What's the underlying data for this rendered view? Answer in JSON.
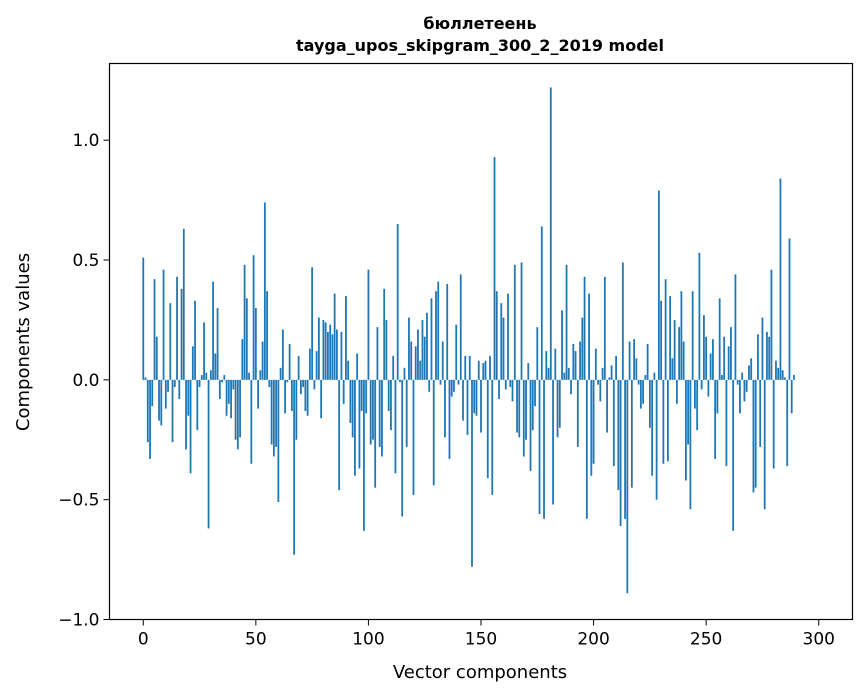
{
  "chart_data": {
    "type": "bar",
    "title_line1": "бюллетеень",
    "title_line2": "tayga_upos_skipgram_300_2_2019 model",
    "xlabel": "Vector components",
    "ylabel": "Components values",
    "xlim": [
      -15,
      315
    ],
    "ylim": [
      -1.0,
      1.32
    ],
    "xticks": [
      0,
      50,
      100,
      150,
      200,
      250,
      300
    ],
    "xtick_labels": [
      "0",
      "50",
      "100",
      "150",
      "200",
      "250",
      "300"
    ],
    "yticks": [
      -1.0,
      -0.5,
      0.0,
      0.5,
      1.0
    ],
    "ytick_labels": [
      "−1.0",
      "−0.5",
      "0.0",
      "0.5",
      "1.0"
    ],
    "grid": false,
    "color": "#1f77b4",
    "values": [
      0.51,
      0.01,
      -0.26,
      -0.33,
      -0.11,
      0.42,
      0.18,
      -0.17,
      -0.19,
      0.46,
      -0.12,
      -0.05,
      0.32,
      -0.26,
      -0.03,
      0.43,
      -0.08,
      0.38,
      0.63,
      -0.29,
      -0.15,
      -0.39,
      0.14,
      0.33,
      -0.21,
      -0.03,
      0.02,
      0.24,
      0.03,
      -0.62,
      0.04,
      0.41,
      0.11,
      0.3,
      -0.08,
      -0.01,
      0.02,
      -0.15,
      -0.1,
      -0.16,
      -0.04,
      -0.25,
      -0.29,
      -0.24,
      0.17,
      0.48,
      0.34,
      0.03,
      -0.35,
      0.52,
      0.3,
      -0.12,
      0.04,
      0.16,
      0.74,
      0.37,
      -0.03,
      -0.27,
      -0.32,
      -0.28,
      -0.51,
      0.05,
      0.21,
      -0.14,
      -0.01,
      0.15,
      -0.13,
      -0.73,
      -0.25,
      0.1,
      -0.06,
      -0.03,
      -0.13,
      -0.15,
      0.13,
      0.47,
      -0.04,
      0.12,
      0.26,
      -0.16,
      0.25,
      0.24,
      0.2,
      0.23,
      0.19,
      0.36,
      0.21,
      -0.46,
      0.2,
      -0.1,
      0.35,
      0.08,
      -0.18,
      -0.24,
      -0.4,
      0.11,
      -0.37,
      -0.13,
      -0.63,
      -0.14,
      0.46,
      -0.27,
      -0.25,
      -0.45,
      0.22,
      -0.28,
      -0.32,
      0.38,
      0.25,
      -0.13,
      -0.21,
      0.1,
      -0.39,
      0.65,
      -0.01,
      -0.57,
      0.05,
      -0.28,
      0.26,
      0.16,
      -0.48,
      0.14,
      0.21,
      0.08,
      0.25,
      0.18,
      0.28,
      -0.05,
      0.34,
      -0.44,
      0.37,
      0.41,
      -0.02,
      0.16,
      -0.24,
      0.4,
      -0.33,
      -0.07,
      -0.05,
      0.23,
      -0.02,
      0.44,
      -0.17,
      0.1,
      -0.23,
      0.1,
      -0.78,
      -0.14,
      -0.15,
      0.08,
      -0.22,
      0.07,
      0.08,
      -0.41,
      0.1,
      -0.48,
      0.93,
      0.37,
      -0.08,
      0.32,
      0.26,
      -0.04,
      0.36,
      -0.03,
      -0.09,
      0.48,
      -0.22,
      -0.24,
      0.49,
      -0.32,
      -0.25,
      0.07,
      -0.38,
      -0.21,
      -0.11,
      0.22,
      -0.56,
      0.64,
      -0.58,
      0.12,
      0.05,
      1.22,
      -0.52,
      0.13,
      -0.24,
      -0.2,
      0.29,
      0.03,
      0.48,
      0.05,
      -0.06,
      0.15,
      0.12,
      -0.28,
      0.16,
      0.26,
      0.43,
      -0.58,
      0.36,
      -0.4,
      -0.35,
      0.13,
      -0.02,
      -0.09,
      0.05,
      0.43,
      -0.22,
      0.01,
      0.06,
      -0.36,
      0.1,
      -0.46,
      -0.61,
      0.49,
      -0.58,
      -0.89,
      0.16,
      -0.45,
      0.17,
      0.09,
      -0.02,
      -0.12,
      -0.1,
      0.02,
      0.15,
      -0.2,
      -0.4,
      0.03,
      -0.5,
      0.79,
      0.33,
      -0.35,
      0.42,
      -0.34,
      0.35,
      0.09,
      0.25,
      -0.1,
      0.22,
      0.37,
      0.16,
      -0.42,
      -0.27,
      -0.54,
      0.37,
      -0.12,
      -0.21,
      0.53,
      -0.04,
      0.27,
      0.18,
      -0.07,
      0.11,
      0.17,
      -0.33,
      -0.14,
      0.34,
      0.02,
      0.18,
      -0.36,
      0.14,
      0.22,
      -0.63,
      0.44,
      -0.02,
      -0.14,
      0.03,
      -0.09,
      -0.05,
      0.06,
      0.09,
      -0.47,
      -0.45,
      0.19,
      -0.28,
      0.26,
      -0.54,
      0.2,
      0.18,
      0.46,
      -0.37,
      0.08,
      0.05,
      0.84,
      0.04,
      0.01,
      -0.36,
      0.59,
      -0.14,
      0.02
    ]
  }
}
